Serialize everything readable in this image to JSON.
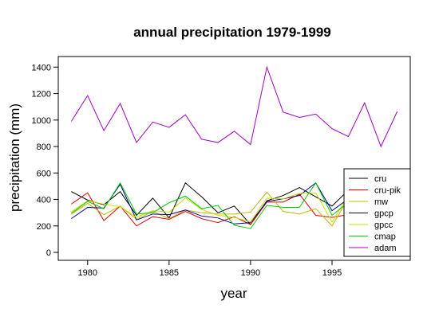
{
  "chart_data": {
    "type": "line",
    "title": "annual precipitation 1979-1999",
    "xlabel": "year",
    "ylabel": "precipitation (mm)",
    "x": [
      1979,
      1980,
      1981,
      1982,
      1983,
      1984,
      1985,
      1986,
      1987,
      1988,
      1989,
      1990,
      1991,
      1992,
      1993,
      1994,
      1995,
      1996,
      1997,
      1998,
      1999
    ],
    "xlim": [
      1978.2,
      1999.8
    ],
    "ylim": [
      -60,
      1480
    ],
    "xticks": [
      1980,
      1985,
      1990,
      1995
    ],
    "yticks": [
      0,
      200,
      400,
      600,
      800,
      1000,
      1200,
      1400
    ],
    "grid": false,
    "legend_position": "bottom-right",
    "series": [
      {
        "name": "cru",
        "color": "#000000",
        "values": [
          460,
          395,
          360,
          460,
          280,
          410,
          260,
          525,
          420,
          300,
          350,
          210,
          390,
          430,
          490,
          420,
          350,
          470,
          null,
          null,
          null
        ]
      },
      {
        "name": "cru-pik",
        "color": "#e00000",
        "values": [
          365,
          450,
          240,
          350,
          200,
          270,
          250,
          310,
          255,
          225,
          270,
          210,
          380,
          380,
          440,
          280,
          265,
          285,
          null,
          null,
          null
        ]
      },
      {
        "name": "mw",
        "color": "#c8b400",
        "values": [
          290,
          370,
          285,
          350,
          250,
          310,
          255,
          320,
          300,
          290,
          290,
          305,
          455,
          310,
          290,
          330,
          200,
          410,
          null,
          null,
          null
        ]
      },
      {
        "name": "gpcp",
        "color": "#000090",
        "values": [
          255,
          340,
          335,
          515,
          245,
          290,
          285,
          320,
          275,
          260,
          215,
          225,
          385,
          405,
          430,
          525,
          315,
          405,
          null,
          null,
          null
        ]
      },
      {
        "name": "gpcc",
        "color": "#c8e000",
        "values": [
          305,
          390,
          365,
          345,
          265,
          315,
          305,
          410,
          325,
          280,
          265,
          230,
          410,
          405,
          445,
          450,
          230,
          430,
          null,
          null,
          null
        ]
      },
      {
        "name": "cmap",
        "color": "#00cc00",
        "values": [
          295,
          385,
          330,
          525,
          290,
          300,
          375,
          425,
          330,
          355,
          205,
          180,
          355,
          340,
          340,
          525,
          280,
          380,
          null,
          null,
          null
        ]
      },
      {
        "name": "adam",
        "color": "#a000c0",
        "values": [
          990,
          1185,
          920,
          1125,
          830,
          985,
          945,
          1040,
          855,
          830,
          915,
          815,
          1400,
          1060,
          1020,
          1045,
          935,
          875,
          1130,
          800,
          1065
        ]
      }
    ]
  }
}
